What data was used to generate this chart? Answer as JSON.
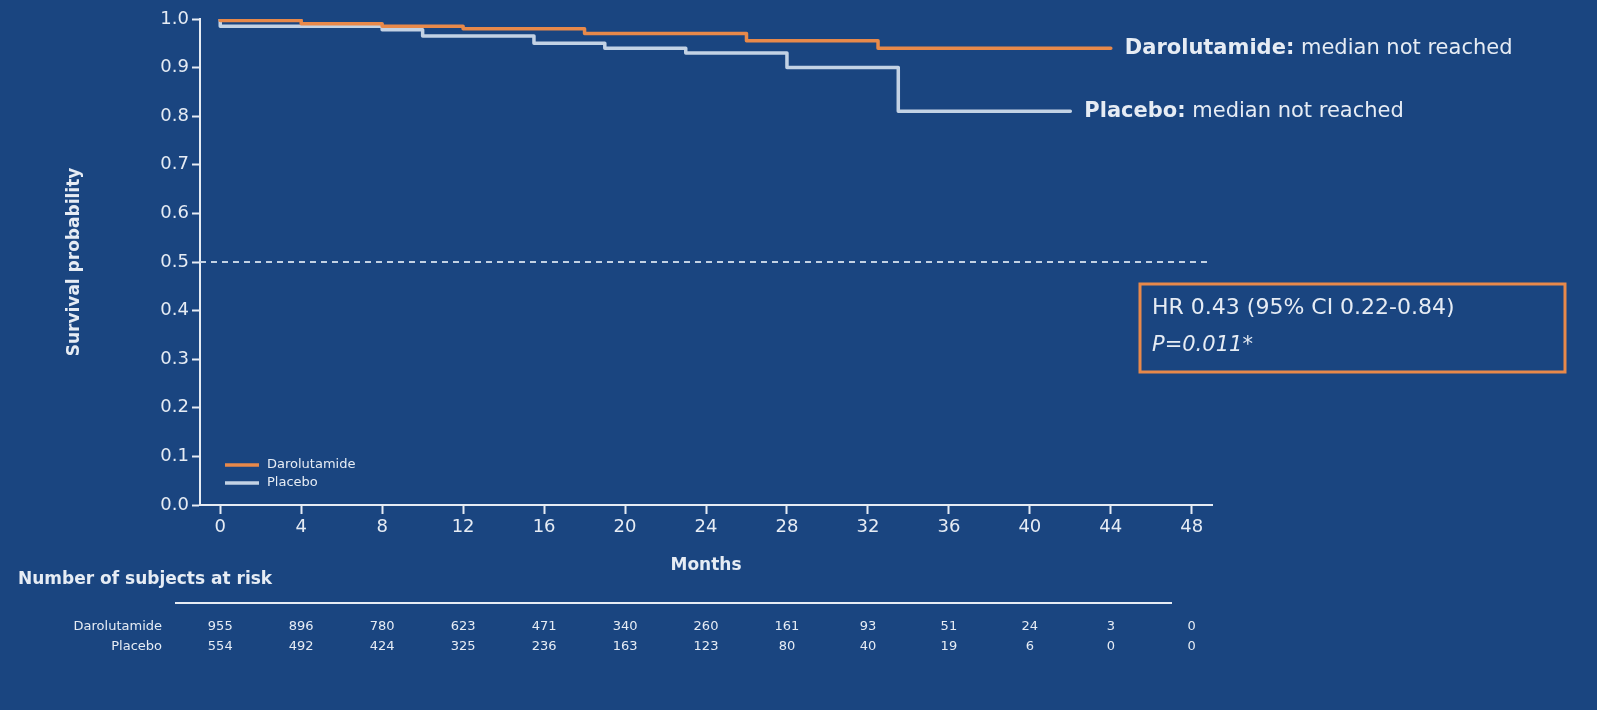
{
  "chart_data": {
    "type": "step",
    "xlabel": "Months",
    "ylabel": "Survival probability",
    "xlim": [
      -1,
      49
    ],
    "xticks": [
      0,
      4,
      8,
      12,
      16,
      20,
      24,
      28,
      32,
      36,
      40,
      44,
      48
    ],
    "ylim": [
      0,
      1.0
    ],
    "yticks": [
      {
        "value": 0,
        "label": "0.0"
      },
      0.1,
      0.2,
      0.3,
      0.4,
      0.5,
      0.6,
      0.7,
      0.8,
      0.9,
      {
        "value": 1,
        "label": "1.0"
      }
    ],
    "grid": false,
    "legend": "bottom left",
    "marker": "none",
    "line_style": "solid",
    "series": [
      {
        "name": "Darolutamide",
        "color": "#e8894a",
        "x": [
          0,
          4,
          8,
          12,
          18,
          26,
          32.5,
          34,
          44
        ],
        "values": [
          1.0,
          0.997,
          0.99,
          0.985,
          0.98,
          0.97,
          0.955,
          0.94,
          0.94
        ]
      },
      {
        "name": "Placebo",
        "color": "#c3d2e4",
        "x": [
          0,
          8,
          10,
          15.5,
          19,
          23,
          28,
          33.5,
          38.5,
          42
        ],
        "values": [
          1.0,
          0.985,
          0.978,
          0.965,
          0.95,
          0.94,
          0.93,
          0.9,
          0.81,
          0.81
        ]
      }
    ],
    "ref_lines": [
      {
        "axis": "y",
        "value": 0.5,
        "color": "#c3d2e4",
        "line_style": "dashed"
      }
    ],
    "annotations": [
      "HR 0.43 (95% CI 0.22-0.84)",
      "P=0.011*",
      {
        "text": "Darolutamide: median not reached",
        "x": 44,
        "y": 0.94
      },
      {
        "text": "Placebo: median not reached",
        "x": 42,
        "y": 0.81
      },
      "Number of subjects at risk",
      "Darolutamide",
      "955",
      "896",
      "780",
      "623",
      "471",
      "340",
      "260",
      "161",
      "93",
      "51",
      "24",
      "3",
      "0",
      "Placebo",
      "554",
      "492",
      "424",
      "325",
      "236",
      "163",
      "123",
      "80",
      "40",
      "19",
      "6",
      "0",
      "0"
    ]
  }
}
